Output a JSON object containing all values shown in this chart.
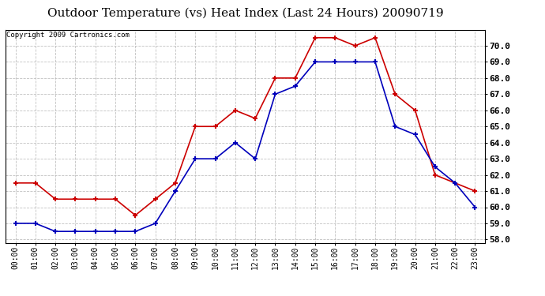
{
  "title": "Outdoor Temperature (vs) Heat Index (Last 24 Hours) 20090719",
  "copyright": "Copyright 2009 Cartronics.com",
  "hours": [
    "00:00",
    "01:00",
    "02:00",
    "03:00",
    "04:00",
    "05:00",
    "06:00",
    "07:00",
    "08:00",
    "09:00",
    "10:00",
    "11:00",
    "12:00",
    "13:00",
    "14:00",
    "15:00",
    "16:00",
    "17:00",
    "18:00",
    "19:00",
    "20:00",
    "21:00",
    "22:00",
    "23:00"
  ],
  "temp": [
    59.0,
    59.0,
    58.5,
    58.5,
    58.5,
    58.5,
    58.5,
    59.0,
    61.0,
    63.0,
    63.0,
    64.0,
    63.0,
    67.0,
    67.5,
    69.0,
    69.0,
    69.0,
    69.0,
    65.0,
    64.5,
    62.5,
    61.5,
    60.0
  ],
  "heat_index": [
    61.5,
    61.5,
    60.5,
    60.5,
    60.5,
    60.5,
    59.5,
    60.5,
    61.5,
    65.0,
    65.0,
    66.0,
    65.5,
    68.0,
    68.0,
    70.5,
    70.5,
    70.0,
    70.5,
    67.0,
    66.0,
    62.0,
    61.5,
    61.0
  ],
  "temp_color": "#0000bb",
  "heat_index_color": "#cc0000",
  "bg_color": "#ffffff",
  "plot_bg_color": "#ffffff",
  "grid_color": "#bbbbbb",
  "ylim_min": 57.8,
  "ylim_max": 71.0,
  "ytick_min": 58.0,
  "ytick_max": 70.0,
  "ytick_step": 1.0,
  "title_fontsize": 11,
  "copyright_fontsize": 6.5,
  "tick_fontsize": 7,
  "ytick_fontsize": 8
}
